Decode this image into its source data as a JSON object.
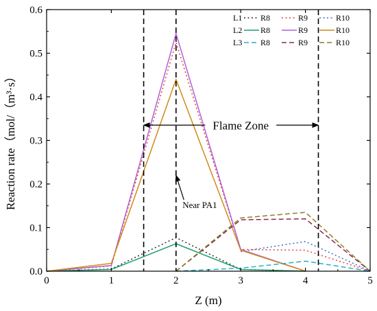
{
  "chart_data": {
    "type": "line",
    "xlabel": "Z (m)",
    "ylabel": "Reaction rate（mol/（m³·s）",
    "xlim": [
      0,
      5
    ],
    "ylim": [
      0,
      0.6
    ],
    "x_ticks": [
      "0",
      "1",
      "2",
      "3",
      "4",
      "5"
    ],
    "y_ticks": [
      "0.0",
      "0.1",
      "0.2",
      "0.3",
      "0.4",
      "0.5",
      "0.6"
    ],
    "grid": false,
    "legend_placement": "top-right",
    "legend_rows": [
      {
        "label": "L1",
        "series": [
          "L1-R8",
          "L1-R9",
          "L1-R10"
        ]
      },
      {
        "label": "L2",
        "series": [
          "L2-R8",
          "L2-R9",
          "L2-R10"
        ]
      },
      {
        "label": "L3",
        "series": [
          "L3-R8",
          "L3-R9",
          "L3-R10"
        ]
      }
    ],
    "series": [
      {
        "id": "L1-R8",
        "name": "R8",
        "color": "#2b2b2b",
        "dash": "dot",
        "points": [
          [
            0,
            0
          ],
          [
            1,
            0.005
          ],
          [
            2,
            0.077
          ],
          [
            3,
            0.004
          ],
          [
            4,
            0.0
          ]
        ]
      },
      {
        "id": "L1-R9",
        "name": "R9",
        "color": "#e0413a",
        "dash": "dot",
        "points": [
          [
            0,
            0
          ],
          [
            1,
            0.012
          ],
          [
            2,
            0.525
          ],
          [
            3,
            0.05
          ],
          [
            4,
            0.048
          ],
          [
            5,
            0.0
          ]
        ]
      },
      {
        "id": "L1-R10",
        "name": "R10",
        "color": "#3a68c8",
        "dash": "dot",
        "points": [
          [
            3,
            0.045
          ],
          [
            4,
            0.068
          ],
          [
            5,
            0.0
          ]
        ]
      },
      {
        "id": "L2-R8",
        "name": "R8",
        "color": "#1e9e6a",
        "dash": "solid",
        "points": [
          [
            0,
            0
          ],
          [
            1,
            0.004
          ],
          [
            2,
            0.063
          ],
          [
            3,
            0.004
          ],
          [
            4,
            0.0
          ]
        ]
      },
      {
        "id": "L2-R9",
        "name": "R9",
        "color": "#b15fd8",
        "dash": "solid",
        "points": [
          [
            0,
            0
          ],
          [
            1,
            0.013
          ],
          [
            2,
            0.545
          ],
          [
            3,
            0.05
          ],
          [
            4,
            0.0
          ]
        ]
      },
      {
        "id": "L2-R10",
        "name": "R10",
        "color": "#d08a17",
        "dash": "solid",
        "points": [
          [
            0,
            0
          ],
          [
            1,
            0.018
          ],
          [
            2,
            0.44
          ],
          [
            3,
            0.048
          ],
          [
            4,
            0.0
          ]
        ]
      },
      {
        "id": "L3-R8",
        "name": "R8",
        "color": "#20b0c8",
        "dash": "dash",
        "points": [
          [
            2,
            0
          ],
          [
            3,
            0.007
          ],
          [
            4,
            0.023
          ],
          [
            5,
            0.0
          ]
        ]
      },
      {
        "id": "L3-R9",
        "name": "R9",
        "color": "#8a2a4a",
        "dash": "dash",
        "points": [
          [
            2,
            0
          ],
          [
            3,
            0.118
          ],
          [
            4,
            0.12
          ],
          [
            5,
            0.0
          ]
        ]
      },
      {
        "id": "L3-R10",
        "name": "R10",
        "color": "#8c7a2a",
        "dash": "dash",
        "points": [
          [
            2,
            0
          ],
          [
            3,
            0.122
          ],
          [
            4,
            0.135
          ],
          [
            5,
            0.0
          ]
        ]
      }
    ],
    "vertical_lines_x": [
      1.5,
      2.0,
      4.2
    ],
    "annotations": {
      "flame_zone": {
        "text": "Flame Zone",
        "x_from": 1.5,
        "x_to": 4.2,
        "y": 0.335
      },
      "near_pa1": {
        "text": "Near  PA1",
        "arrow_to": [
          2.0,
          0.22
        ],
        "text_at": [
          2.1,
          0.145
        ]
      }
    }
  }
}
